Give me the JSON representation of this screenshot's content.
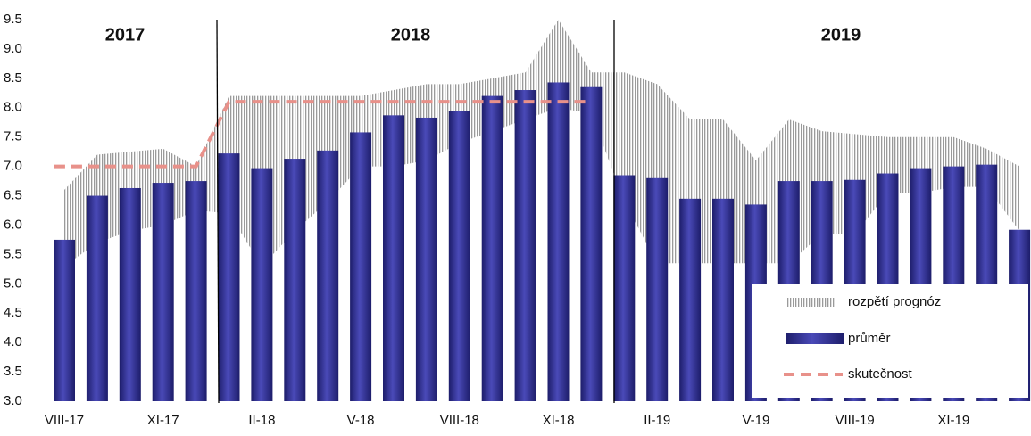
{
  "chart_data": {
    "type": "bar",
    "categories": [
      "VIII-17",
      null,
      null,
      "XI-17",
      null,
      null,
      "II-18",
      null,
      null,
      "V-18",
      null,
      null,
      "VIII-18",
      null,
      null,
      "XI-18",
      null,
      null,
      "II-19",
      null,
      null,
      "V-19",
      null,
      null,
      "VIII-19",
      null,
      null,
      "XI-19",
      null,
      null
    ],
    "series": [
      {
        "name": "rozpětí prognóz",
        "color": "#9a9a9a",
        "low": [
          5.3,
          5.7,
          5.9,
          6.0,
          6.25,
          6.2,
          5.3,
          5.9,
          6.4,
          7.0,
          7.0,
          7.1,
          7.4,
          7.6,
          7.8,
          8.0,
          7.9,
          6.4,
          5.35,
          5.35,
          5.35,
          5.35,
          5.35,
          5.85,
          5.85,
          6.55,
          6.55,
          6.65,
          6.65,
          5.9
        ],
        "high": [
          6.6,
          7.2,
          7.25,
          7.3,
          7.0,
          8.2,
          8.2,
          8.2,
          8.2,
          8.2,
          8.3,
          8.4,
          8.4,
          8.5,
          8.6,
          9.5,
          8.6,
          8.6,
          8.4,
          7.8,
          7.8,
          7.1,
          7.8,
          7.6,
          7.55,
          7.5,
          7.5,
          7.5,
          7.3,
          7.0
        ]
      },
      {
        "name": "průměr",
        "color": "#2a2a8a",
        "values": [
          5.75,
          6.5,
          6.63,
          6.72,
          6.75,
          7.22,
          6.97,
          7.13,
          7.27,
          7.58,
          7.87,
          7.83,
          7.95,
          8.2,
          8.3,
          8.43,
          8.35,
          6.85,
          6.8,
          6.45,
          6.45,
          6.35,
          6.75,
          6.75,
          6.77,
          6.88,
          6.97,
          7.0,
          7.03,
          5.92
        ]
      },
      {
        "name": "skutečnost",
        "color": "#e8918a",
        "values": [
          7.0,
          7.0,
          7.0,
          7.0,
          7.0,
          8.1,
          8.1,
          8.1,
          8.1,
          8.1,
          8.1,
          8.1,
          8.1,
          8.1,
          8.1,
          8.1,
          8.1,
          null,
          null,
          null,
          null,
          null,
          null,
          null,
          null,
          null,
          null,
          null,
          null,
          null
        ]
      }
    ],
    "annotations": [
      "2017",
      "2018",
      "2019"
    ],
    "ylim": [
      3.0,
      9.5
    ],
    "yticks": [
      {
        "value": 3.0,
        "label": "3.0"
      },
      3.5,
      {
        "value": 4.0,
        "label": "4.0"
      },
      4.5,
      {
        "value": 5.0,
        "label": "5.0"
      },
      5.5,
      {
        "value": 6.0,
        "label": "6.0"
      },
      6.5,
      {
        "value": 7.0,
        "label": "7.0"
      },
      7.5,
      {
        "value": 8.0,
        "label": "8.0"
      },
      8.5,
      {
        "value": 9.0,
        "label": "9.0"
      },
      9.5
    ],
    "grid": false,
    "legend": "lower right"
  }
}
